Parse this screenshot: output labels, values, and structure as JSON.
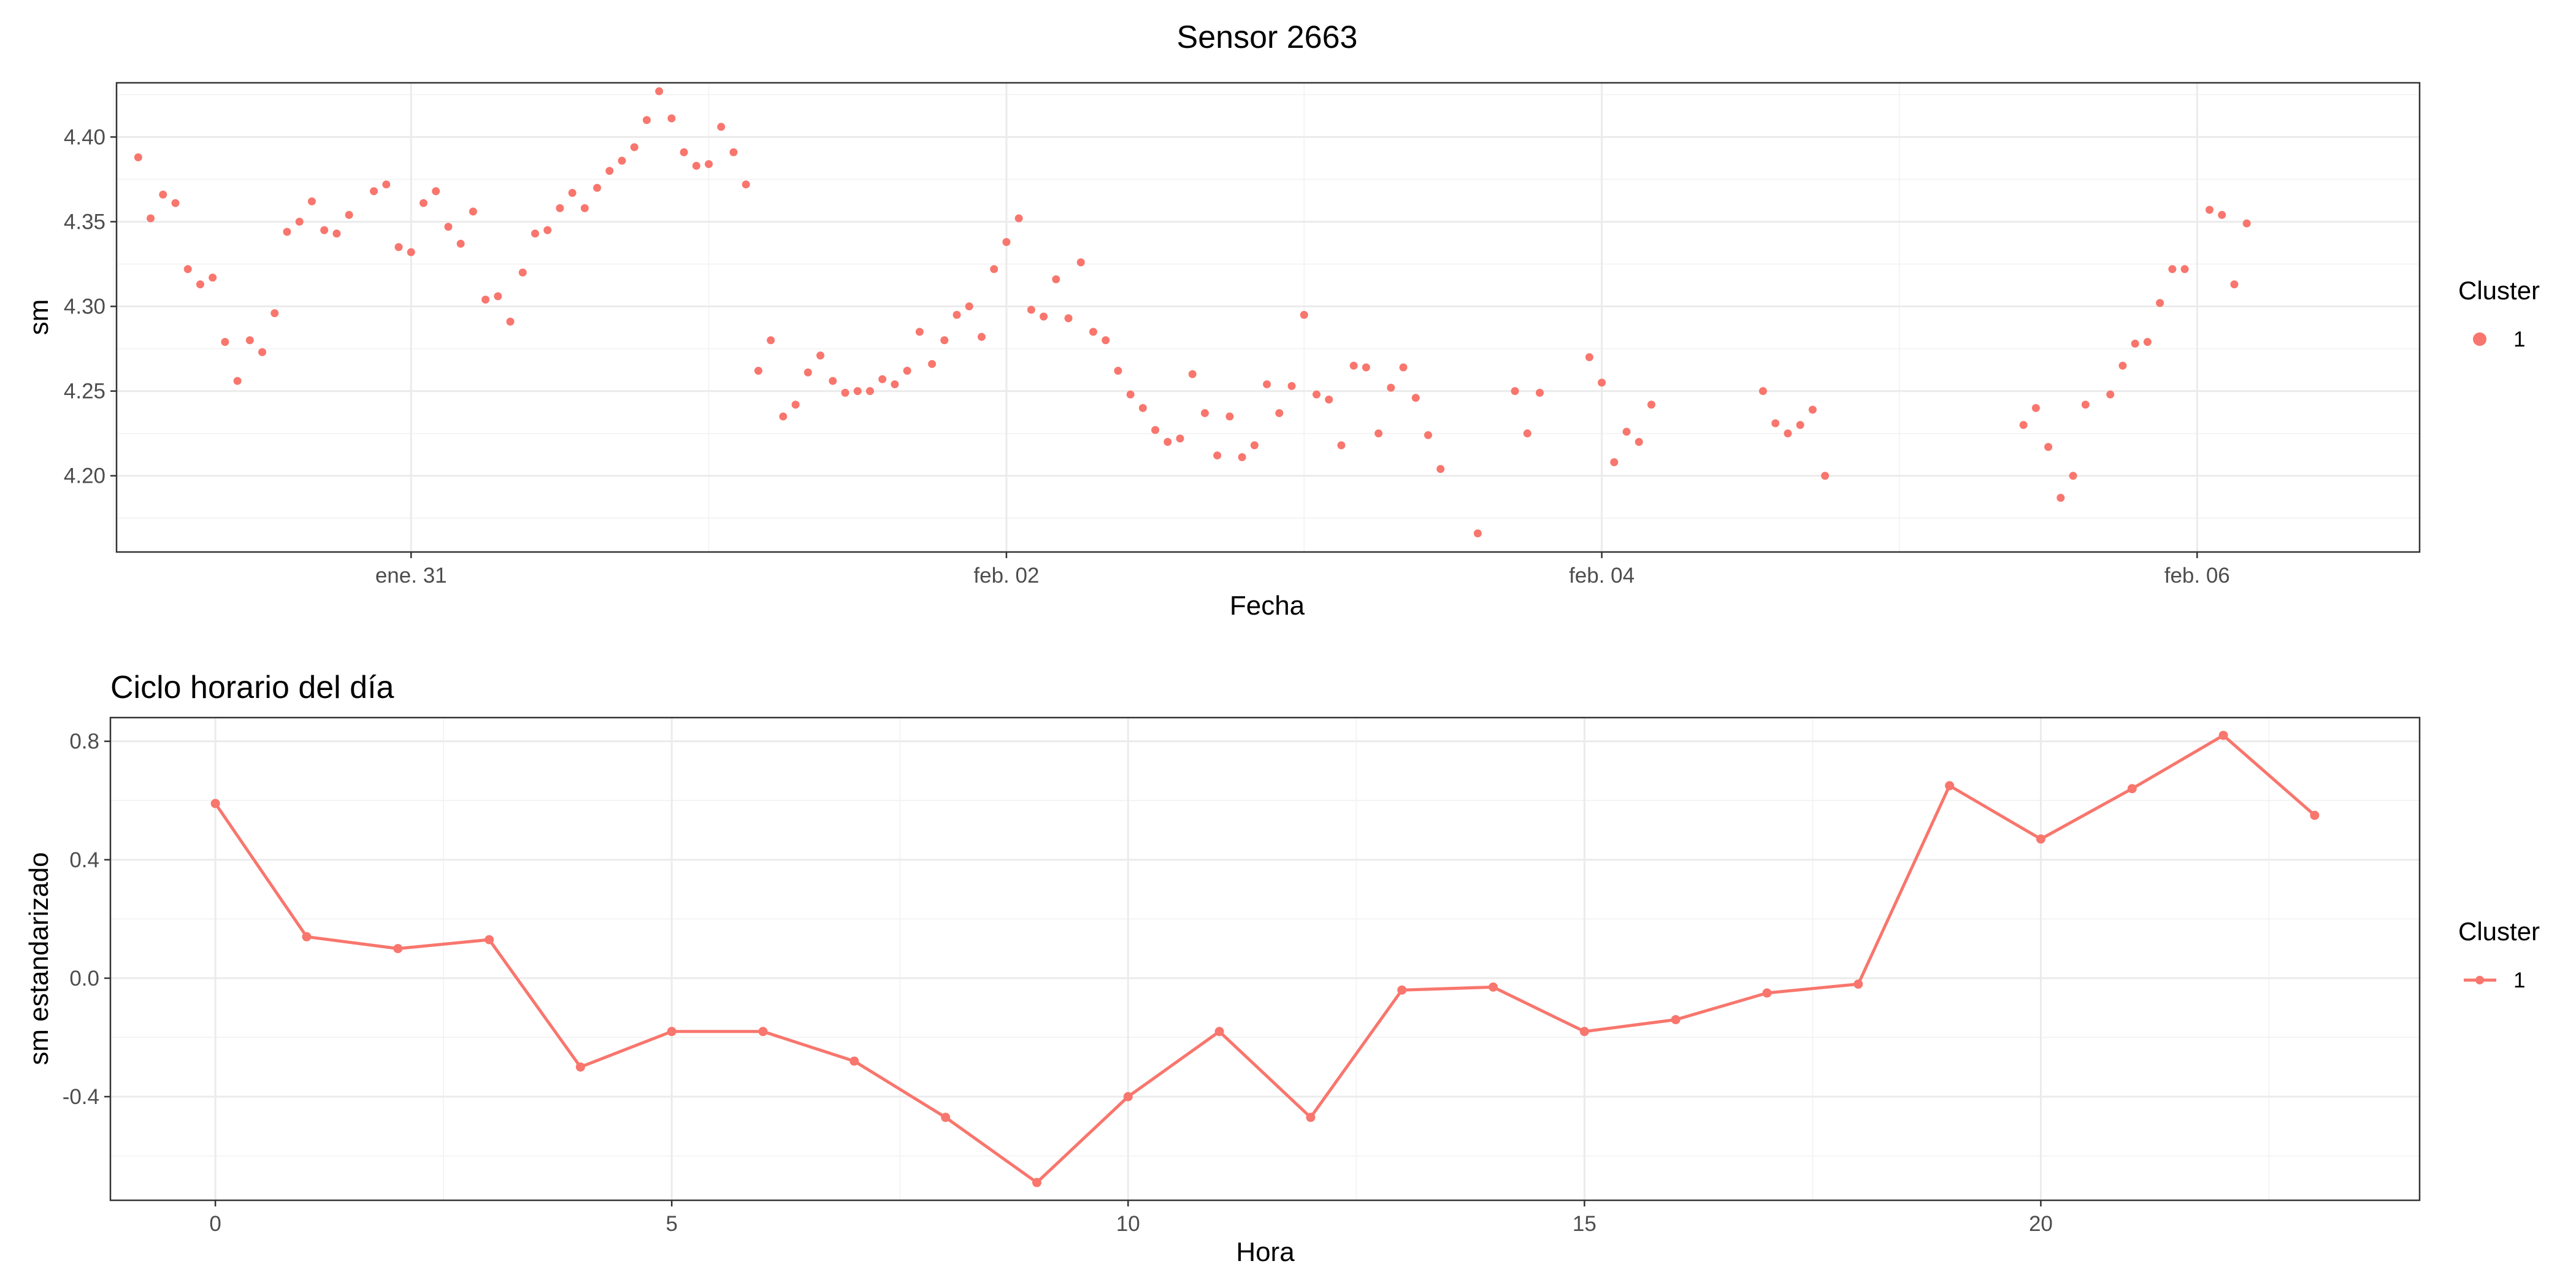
{
  "colors": {
    "cluster_1": "#F8766D"
  },
  "chart_data": [
    {
      "type": "scatter",
      "title": "Sensor 2663",
      "xlabel": "Fecha",
      "ylabel": "sm",
      "x_unit": "date (days since 2025-01-31 00:00 not printed; ticks are dates)",
      "x_ticks": [
        "ene. 31",
        "feb. 02",
        "feb. 04",
        "feb. 06"
      ],
      "y_ticks": [
        "4.20",
        "4.25",
        "4.30",
        "4.35",
        "4.40"
      ],
      "ylim": [
        4.155,
        4.432
      ],
      "grid": true,
      "legend": {
        "title": "Cluster",
        "position": "right",
        "entries": [
          "1"
        ]
      },
      "series": [
        {
          "name": "1",
          "points": [
            [
              "2025-01-30 02:00",
              4.388
            ],
            [
              "2025-01-30 03:00",
              4.352
            ],
            [
              "2025-01-30 04:00",
              4.366
            ],
            [
              "2025-01-30 05:00",
              4.361
            ],
            [
              "2025-01-30 06:00",
              4.322
            ],
            [
              "2025-01-30 07:00",
              4.313
            ],
            [
              "2025-01-30 08:00",
              4.317
            ],
            [
              "2025-01-30 09:00",
              4.279
            ],
            [
              "2025-01-30 10:00",
              4.256
            ],
            [
              "2025-01-30 11:00",
              4.28
            ],
            [
              "2025-01-30 12:00",
              4.273
            ],
            [
              "2025-01-30 13:00",
              4.296
            ],
            [
              "2025-01-30 14:00",
              4.344
            ],
            [
              "2025-01-30 15:00",
              4.35
            ],
            [
              "2025-01-30 16:00",
              4.362
            ],
            [
              "2025-01-30 17:00",
              4.345
            ],
            [
              "2025-01-30 18:00",
              4.343
            ],
            [
              "2025-01-30 19:00",
              4.354
            ],
            [
              "2025-01-30 21:00",
              4.368
            ],
            [
              "2025-01-30 22:00",
              4.372
            ],
            [
              "2025-01-30 23:00",
              4.335
            ],
            [
              "2025-01-31 00:00",
              4.332
            ],
            [
              "2025-01-31 01:00",
              4.361
            ],
            [
              "2025-01-31 02:00",
              4.368
            ],
            [
              "2025-01-31 03:00",
              4.347
            ],
            [
              "2025-01-31 04:00",
              4.337
            ],
            [
              "2025-01-31 05:00",
              4.356
            ],
            [
              "2025-01-31 06:00",
              4.304
            ],
            [
              "2025-01-31 07:00",
              4.306
            ],
            [
              "2025-01-31 08:00",
              4.291
            ],
            [
              "2025-01-31 09:00",
              4.32
            ],
            [
              "2025-01-31 10:00",
              4.343
            ],
            [
              "2025-01-31 11:00",
              4.345
            ],
            [
              "2025-01-31 12:00",
              4.358
            ],
            [
              "2025-01-31 13:00",
              4.367
            ],
            [
              "2025-01-31 14:00",
              4.358
            ],
            [
              "2025-01-31 15:00",
              4.37
            ],
            [
              "2025-01-31 16:00",
              4.38
            ],
            [
              "2025-01-31 17:00",
              4.386
            ],
            [
              "2025-01-31 18:00",
              4.394
            ],
            [
              "2025-01-31 19:00",
              4.41
            ],
            [
              "2025-01-31 20:00",
              4.427
            ],
            [
              "2025-01-31 21:00",
              4.411
            ],
            [
              "2025-01-31 22:00",
              4.391
            ],
            [
              "2025-01-31 23:00",
              4.383
            ],
            [
              "2025-02-01 00:00",
              4.384
            ],
            [
              "2025-02-01 01:00",
              4.406
            ],
            [
              "2025-02-01 02:00",
              4.391
            ],
            [
              "2025-02-01 03:00",
              4.372
            ],
            [
              "2025-02-01 04:00",
              4.262
            ],
            [
              "2025-02-01 05:00",
              4.28
            ],
            [
              "2025-02-01 06:00",
              4.235
            ],
            [
              "2025-02-01 07:00",
              4.242
            ],
            [
              "2025-02-01 08:00",
              4.261
            ],
            [
              "2025-02-01 09:00",
              4.271
            ],
            [
              "2025-02-01 10:00",
              4.256
            ],
            [
              "2025-02-01 11:00",
              4.249
            ],
            [
              "2025-02-01 12:00",
              4.25
            ],
            [
              "2025-02-01 13:00",
              4.25
            ],
            [
              "2025-02-01 14:00",
              4.257
            ],
            [
              "2025-02-01 15:00",
              4.254
            ],
            [
              "2025-02-01 16:00",
              4.262
            ],
            [
              "2025-02-01 17:00",
              4.285
            ],
            [
              "2025-02-01 18:00",
              4.266
            ],
            [
              "2025-02-01 19:00",
              4.28
            ],
            [
              "2025-02-01 20:00",
              4.295
            ],
            [
              "2025-02-01 21:00",
              4.3
            ],
            [
              "2025-02-01 22:00",
              4.282
            ],
            [
              "2025-02-01 23:00",
              4.322
            ],
            [
              "2025-02-02 00:00",
              4.338
            ],
            [
              "2025-02-02 01:00",
              4.352
            ],
            [
              "2025-02-02 02:00",
              4.298
            ],
            [
              "2025-02-02 03:00",
              4.294
            ],
            [
              "2025-02-02 04:00",
              4.316
            ],
            [
              "2025-02-02 05:00",
              4.293
            ],
            [
              "2025-02-02 06:00",
              4.326
            ],
            [
              "2025-02-02 07:00",
              4.285
            ],
            [
              "2025-02-02 08:00",
              4.28
            ],
            [
              "2025-02-02 09:00",
              4.262
            ],
            [
              "2025-02-02 10:00",
              4.248
            ],
            [
              "2025-02-02 11:00",
              4.24
            ],
            [
              "2025-02-02 12:00",
              4.227
            ],
            [
              "2025-02-02 13:00",
              4.22
            ],
            [
              "2025-02-02 14:00",
              4.222
            ],
            [
              "2025-02-02 15:00",
              4.26
            ],
            [
              "2025-02-02 16:00",
              4.237
            ],
            [
              "2025-02-02 17:00",
              4.212
            ],
            [
              "2025-02-02 18:00",
              4.235
            ],
            [
              "2025-02-02 19:00",
              4.211
            ],
            [
              "2025-02-02 20:00",
              4.218
            ],
            [
              "2025-02-02 21:00",
              4.254
            ],
            [
              "2025-02-02 22:00",
              4.237
            ],
            [
              "2025-02-02 23:00",
              4.253
            ],
            [
              "2025-02-03 00:00",
              4.295
            ],
            [
              "2025-02-03 01:00",
              4.248
            ],
            [
              "2025-02-03 02:00",
              4.245
            ],
            [
              "2025-02-03 03:00",
              4.218
            ],
            [
              "2025-02-03 04:00",
              4.265
            ],
            [
              "2025-02-03 05:00",
              4.264
            ],
            [
              "2025-02-03 06:00",
              4.225
            ],
            [
              "2025-02-03 07:00",
              4.252
            ],
            [
              "2025-02-03 08:00",
              4.264
            ],
            [
              "2025-02-03 09:00",
              4.246
            ],
            [
              "2025-02-03 10:00",
              4.224
            ],
            [
              "2025-02-03 11:00",
              4.204
            ],
            [
              "2025-02-03 14:00",
              4.166
            ],
            [
              "2025-02-03 17:00",
              4.25
            ],
            [
              "2025-02-03 18:00",
              4.225
            ],
            [
              "2025-02-03 19:00",
              4.249
            ],
            [
              "2025-02-03 23:00",
              4.27
            ],
            [
              "2025-02-04 00:00",
              4.255
            ],
            [
              "2025-02-04 01:00",
              4.208
            ],
            [
              "2025-02-04 02:00",
              4.226
            ],
            [
              "2025-02-04 03:00",
              4.22
            ],
            [
              "2025-02-04 04:00",
              4.242
            ],
            [
              "2025-02-04 13:00",
              4.25
            ],
            [
              "2025-02-04 14:00",
              4.231
            ],
            [
              "2025-02-04 15:00",
              4.225
            ],
            [
              "2025-02-04 16:00",
              4.23
            ],
            [
              "2025-02-04 17:00",
              4.239
            ],
            [
              "2025-02-04 18:00",
              4.2
            ],
            [
              "2025-02-05 10:00",
              4.23
            ],
            [
              "2025-02-05 11:00",
              4.24
            ],
            [
              "2025-02-05 12:00",
              4.217
            ],
            [
              "2025-02-05 13:00",
              4.187
            ],
            [
              "2025-02-05 14:00",
              4.2
            ],
            [
              "2025-02-05 15:00",
              4.242
            ],
            [
              "2025-02-05 17:00",
              4.248
            ],
            [
              "2025-02-05 18:00",
              4.265
            ],
            [
              "2025-02-05 19:00",
              4.278
            ],
            [
              "2025-02-05 20:00",
              4.279
            ],
            [
              "2025-02-05 21:00",
              4.302
            ],
            [
              "2025-02-05 22:00",
              4.322
            ],
            [
              "2025-02-05 23:00",
              4.322
            ],
            [
              "2025-02-06 01:00",
              4.357
            ],
            [
              "2025-02-06 02:00",
              4.354
            ],
            [
              "2025-02-06 03:00",
              4.313
            ],
            [
              "2025-02-06 04:00",
              4.349
            ]
          ]
        }
      ]
    },
    {
      "type": "line",
      "title": "Ciclo horario del día",
      "xlabel": "Hora",
      "ylabel": "sm estandarizado",
      "x_ticks": [
        "0",
        "5",
        "10",
        "15",
        "20"
      ],
      "y_ticks": [
        "-0.4",
        "0.0",
        "0.4",
        "0.8"
      ],
      "xlim": [
        -3.5,
        24.5
      ],
      "ylim": [
        -0.75,
        0.88
      ],
      "grid": true,
      "legend": {
        "title": "Cluster",
        "position": "right",
        "entries": [
          "1"
        ]
      },
      "x": [
        0,
        1,
        2,
        3,
        4,
        5,
        6,
        7,
        8,
        9,
        10,
        11,
        12,
        13,
        14,
        15,
        16,
        17,
        18,
        19,
        20,
        21,
        22,
        23
      ],
      "series": [
        {
          "name": "1",
          "values": [
            0.59,
            0.14,
            0.1,
            0.13,
            -0.3,
            -0.18,
            -0.18,
            -0.28,
            -0.47,
            -0.69,
            -0.4,
            -0.18,
            -0.47,
            -0.04,
            -0.03,
            -0.18,
            -0.14,
            -0.05,
            -0.02,
            0.65,
            0.47,
            0.64,
            0.82,
            0.55
          ]
        }
      ]
    }
  ]
}
